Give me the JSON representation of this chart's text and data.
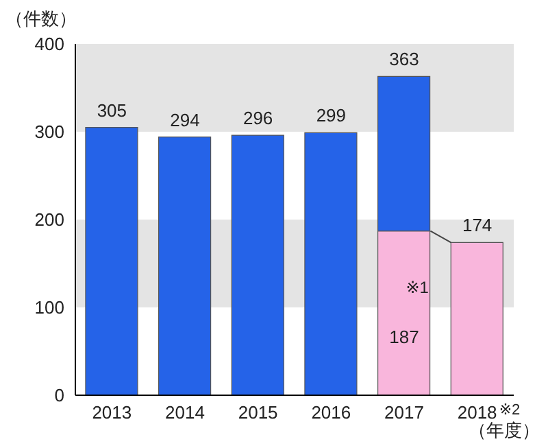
{
  "chart_data": {
    "type": "bar",
    "ylabel": "（件数）",
    "xlabel": "（年度）",
    "categories": [
      "2013",
      "2014",
      "2015",
      "2016",
      "2017",
      "2018"
    ],
    "stacked": true,
    "series": [
      {
        "color": "#f9b6dc",
        "values": [
          null,
          null,
          null,
          null,
          187,
          174
        ],
        "value_labels": [
          null,
          null,
          null,
          null,
          "187",
          null
        ]
      },
      {
        "color": "#2563e8",
        "values": [
          305,
          294,
          296,
          299,
          176,
          null
        ]
      }
    ],
    "totals": [
      "305",
      "294",
      "296",
      "299",
      "363",
      "174"
    ],
    "ylim": [
      0,
      400
    ],
    "yticks": [
      0,
      100,
      200,
      300,
      400
    ],
    "bands": [
      {
        "axis": "y",
        "from": 100,
        "to": 200,
        "color": "#e4e4e4"
      },
      {
        "axis": "y",
        "from": 300,
        "to": 400,
        "color": "#e4e4e4"
      }
    ],
    "annotations": [
      {
        "text": "※1",
        "x": "2017",
        "y": 187
      },
      "※2"
    ]
  }
}
